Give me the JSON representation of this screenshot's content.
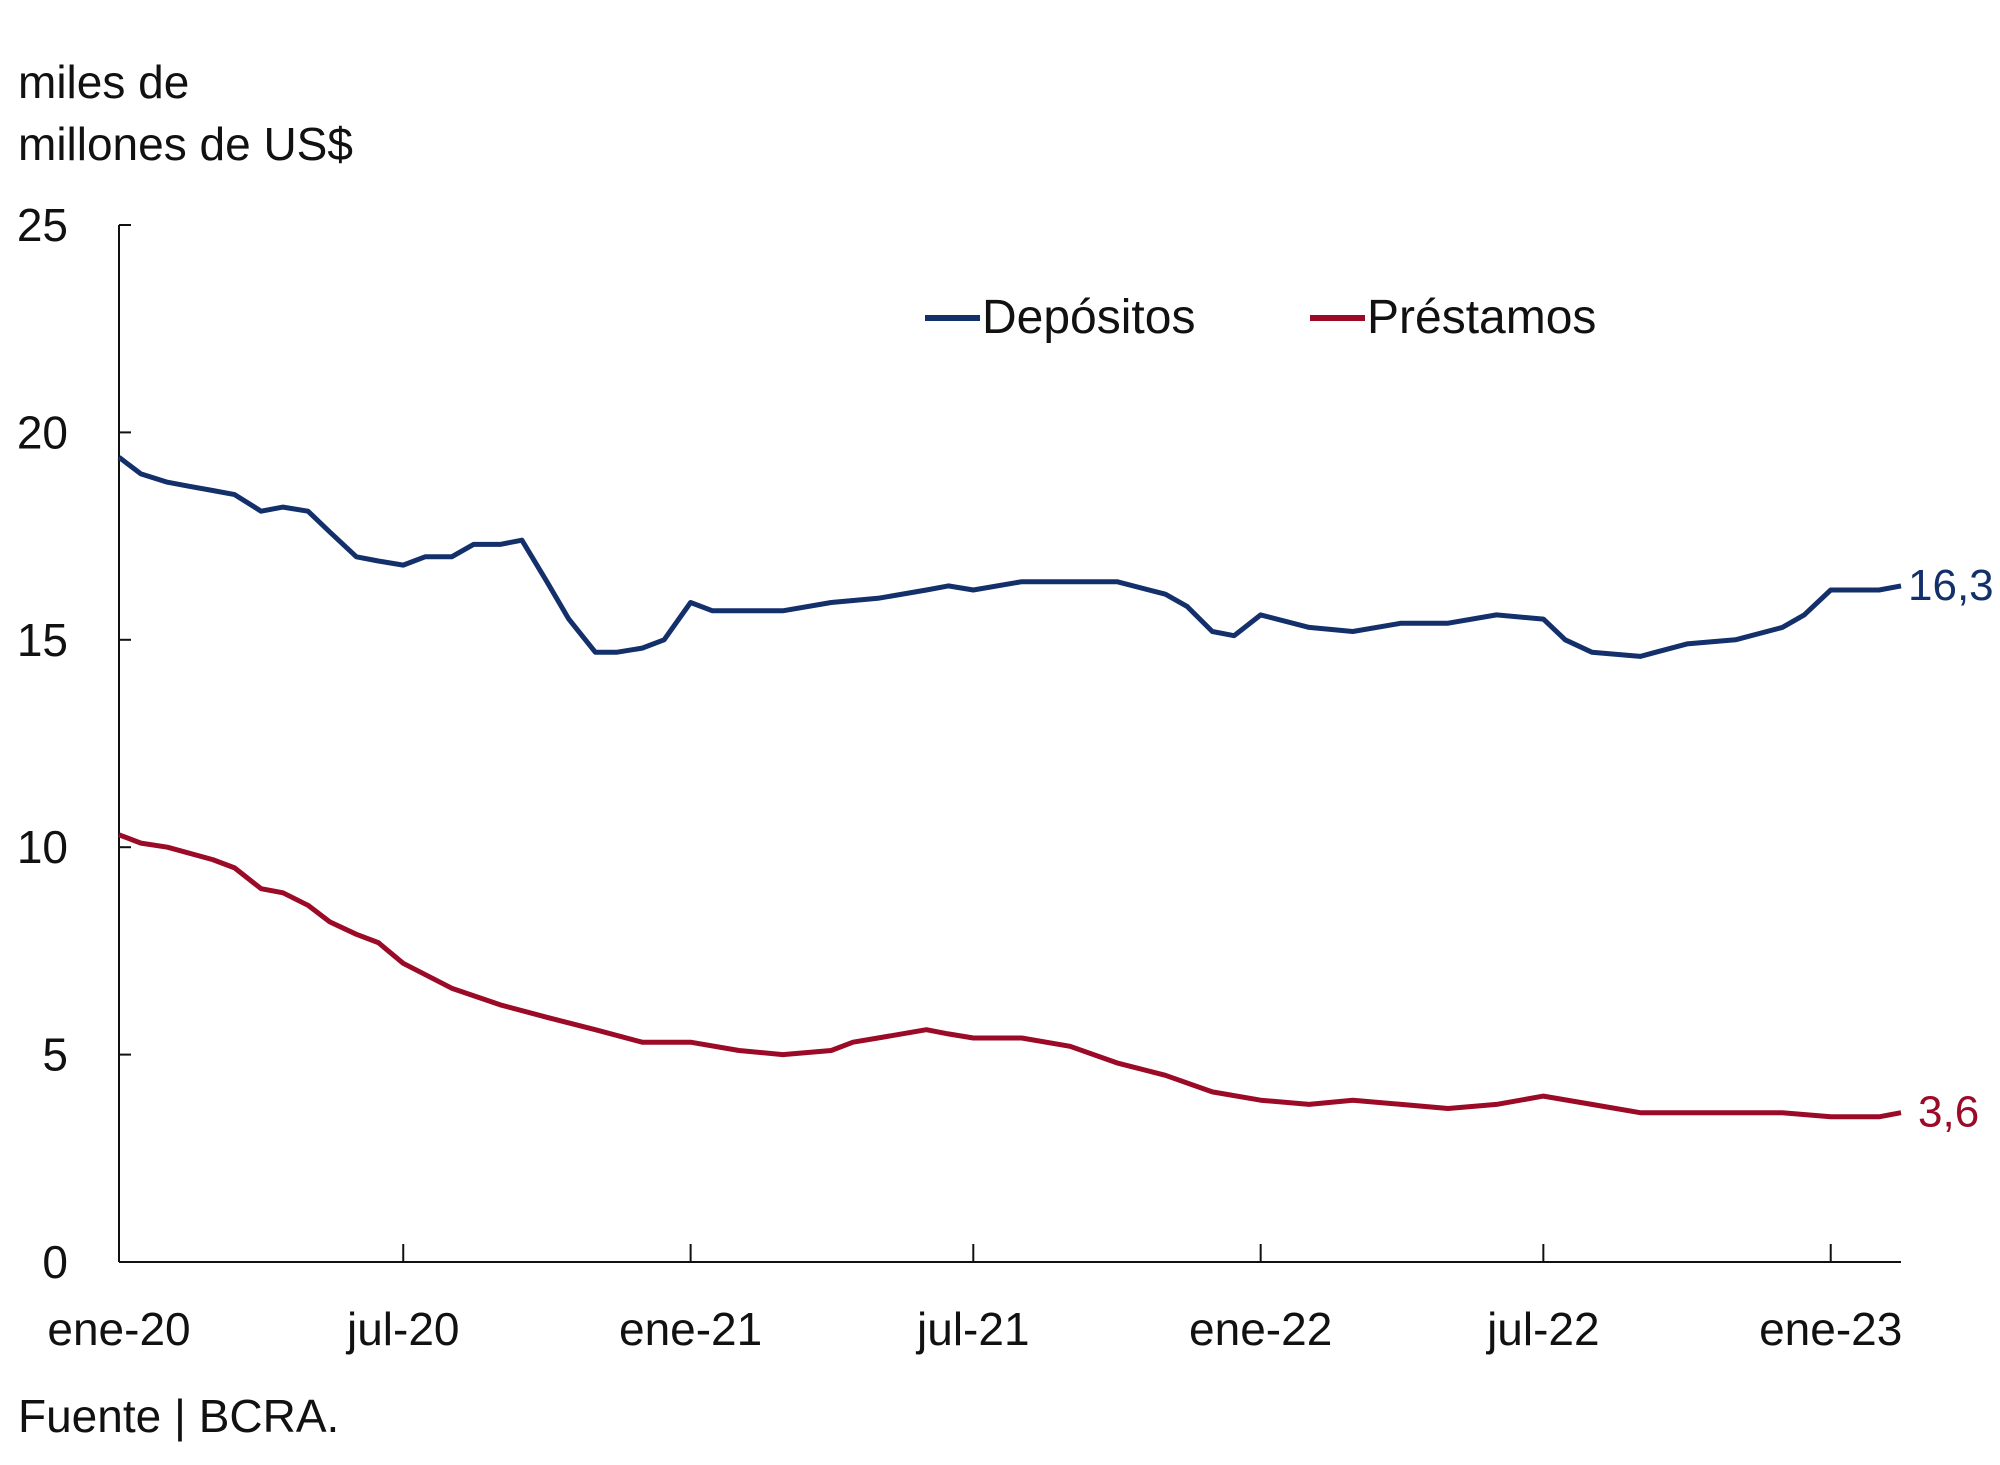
{
  "chart_data": {
    "type": "line",
    "ylabel_lines": [
      "miles de",
      "millones de US$"
    ],
    "source": "Fuente | BCRA.",
    "ylim": [
      0,
      25
    ],
    "yticks": [
      0,
      5,
      10,
      15,
      20,
      25
    ],
    "xlim": [
      "2020-01-01",
      "2023-02-15"
    ],
    "xticks": [
      {
        "date": "2020-01-01",
        "label": "ene-20"
      },
      {
        "date": "2020-07-01",
        "label": "jul-20"
      },
      {
        "date": "2021-01-01",
        "label": "ene-21"
      },
      {
        "date": "2021-07-01",
        "label": "jul-21"
      },
      {
        "date": "2022-01-01",
        "label": "ene-22"
      },
      {
        "date": "2022-07-01",
        "label": "jul-22"
      },
      {
        "date": "2023-01-01",
        "label": "ene-23"
      }
    ],
    "grid": false,
    "legend_position": "top-center",
    "series": [
      {
        "name": "Depósitos",
        "color": "#13306b",
        "end_label": "16,3",
        "points": [
          [
            "2020-01-01",
            19.4
          ],
          [
            "2020-01-15",
            19.0
          ],
          [
            "2020-02-01",
            18.8
          ],
          [
            "2020-02-15",
            18.7
          ],
          [
            "2020-03-01",
            18.6
          ],
          [
            "2020-03-15",
            18.5
          ],
          [
            "2020-04-01",
            18.1
          ],
          [
            "2020-04-15",
            18.2
          ],
          [
            "2020-05-01",
            18.1
          ],
          [
            "2020-05-15",
            17.6
          ],
          [
            "2020-06-01",
            17.0
          ],
          [
            "2020-06-15",
            16.9
          ],
          [
            "2020-07-01",
            16.8
          ],
          [
            "2020-07-15",
            17.0
          ],
          [
            "2020-08-01",
            17.0
          ],
          [
            "2020-08-15",
            17.3
          ],
          [
            "2020-09-01",
            17.3
          ],
          [
            "2020-09-15",
            17.4
          ],
          [
            "2020-10-01",
            16.4
          ],
          [
            "2020-10-15",
            15.5
          ],
          [
            "2020-11-01",
            14.7
          ],
          [
            "2020-11-15",
            14.7
          ],
          [
            "2020-12-01",
            14.8
          ],
          [
            "2020-12-15",
            15.0
          ],
          [
            "2021-01-01",
            15.9
          ],
          [
            "2021-01-15",
            15.7
          ],
          [
            "2021-02-01",
            15.7
          ],
          [
            "2021-03-01",
            15.7
          ],
          [
            "2021-04-01",
            15.9
          ],
          [
            "2021-05-01",
            16.0
          ],
          [
            "2021-06-01",
            16.2
          ],
          [
            "2021-06-15",
            16.3
          ],
          [
            "2021-07-01",
            16.2
          ],
          [
            "2021-08-01",
            16.4
          ],
          [
            "2021-09-01",
            16.4
          ],
          [
            "2021-10-01",
            16.4
          ],
          [
            "2021-11-01",
            16.1
          ],
          [
            "2021-11-15",
            15.8
          ],
          [
            "2021-12-01",
            15.2
          ],
          [
            "2021-12-15",
            15.1
          ],
          [
            "2022-01-01",
            15.6
          ],
          [
            "2022-02-01",
            15.3
          ],
          [
            "2022-03-01",
            15.2
          ],
          [
            "2022-04-01",
            15.4
          ],
          [
            "2022-05-01",
            15.4
          ],
          [
            "2022-06-01",
            15.6
          ],
          [
            "2022-07-01",
            15.5
          ],
          [
            "2022-07-15",
            15.0
          ],
          [
            "2022-08-01",
            14.7
          ],
          [
            "2022-09-01",
            14.6
          ],
          [
            "2022-10-01",
            14.9
          ],
          [
            "2022-11-01",
            15.0
          ],
          [
            "2022-12-01",
            15.3
          ],
          [
            "2022-12-15",
            15.6
          ],
          [
            "2023-01-01",
            16.2
          ],
          [
            "2023-02-01",
            16.2
          ],
          [
            "2023-02-15",
            16.3
          ]
        ]
      },
      {
        "name": "Préstamos",
        "color": "#9b0a26",
        "end_label": "3,6",
        "points": [
          [
            "2020-01-01",
            10.3
          ],
          [
            "2020-01-15",
            10.1
          ],
          [
            "2020-02-01",
            10.0
          ],
          [
            "2020-03-01",
            9.7
          ],
          [
            "2020-03-15",
            9.5
          ],
          [
            "2020-04-01",
            9.0
          ],
          [
            "2020-04-15",
            8.9
          ],
          [
            "2020-05-01",
            8.6
          ],
          [
            "2020-05-15",
            8.2
          ],
          [
            "2020-06-01",
            7.9
          ],
          [
            "2020-06-15",
            7.7
          ],
          [
            "2020-07-01",
            7.2
          ],
          [
            "2020-08-01",
            6.6
          ],
          [
            "2020-09-01",
            6.2
          ],
          [
            "2020-10-01",
            5.9
          ],
          [
            "2020-11-01",
            5.6
          ],
          [
            "2020-12-01",
            5.3
          ],
          [
            "2021-01-01",
            5.3
          ],
          [
            "2021-02-01",
            5.1
          ],
          [
            "2021-03-01",
            5.0
          ],
          [
            "2021-04-01",
            5.1
          ],
          [
            "2021-04-15",
            5.3
          ],
          [
            "2021-05-01",
            5.4
          ],
          [
            "2021-06-01",
            5.6
          ],
          [
            "2021-06-15",
            5.5
          ],
          [
            "2021-07-01",
            5.4
          ],
          [
            "2021-08-01",
            5.4
          ],
          [
            "2021-09-01",
            5.2
          ],
          [
            "2021-10-01",
            4.8
          ],
          [
            "2021-11-01",
            4.5
          ],
          [
            "2021-12-01",
            4.1
          ],
          [
            "2022-01-01",
            3.9
          ],
          [
            "2022-02-01",
            3.8
          ],
          [
            "2022-03-01",
            3.9
          ],
          [
            "2022-04-01",
            3.8
          ],
          [
            "2022-05-01",
            3.7
          ],
          [
            "2022-06-01",
            3.8
          ],
          [
            "2022-07-01",
            4.0
          ],
          [
            "2022-08-01",
            3.8
          ],
          [
            "2022-09-01",
            3.6
          ],
          [
            "2022-10-01",
            3.6
          ],
          [
            "2022-11-01",
            3.6
          ],
          [
            "2022-12-01",
            3.6
          ],
          [
            "2023-01-01",
            3.5
          ],
          [
            "2023-02-01",
            3.5
          ],
          [
            "2023-02-15",
            3.6
          ]
        ]
      }
    ]
  }
}
